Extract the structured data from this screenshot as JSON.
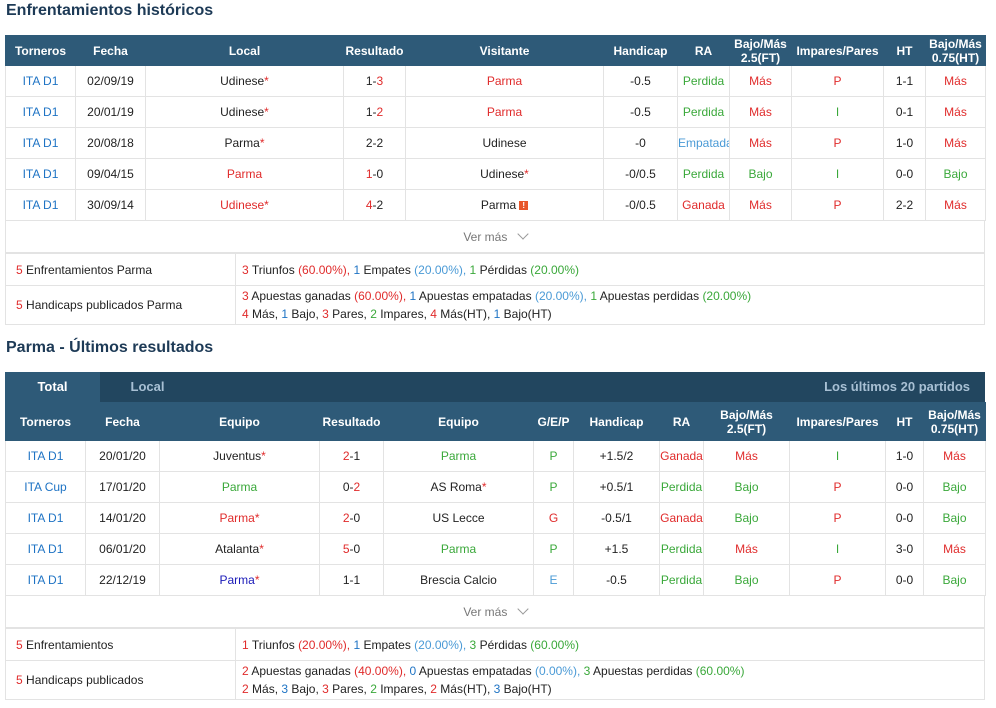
{
  "sections": {
    "h2h_title": "Enfrentamientos históricos",
    "recent_title": "Parma - Últimos resultados"
  },
  "h2h": {
    "headers": [
      "Torneros",
      "Fecha",
      "Local",
      "Resultado",
      "Visitante",
      "Handicap",
      "RA",
      "Bajo/Más 2.5(FT)",
      "Impares/Pares",
      "HT",
      "Bajo/Más 0.75(HT)"
    ],
    "rows": [
      {
        "league": "ITA D1",
        "date": "02/09/19",
        "home": "Udinese",
        "result_a": "1",
        "result_b": "3",
        "away": "Parma",
        "handicap": "-0.5",
        "ra": "Perdida",
        "ou": "Más",
        "oe": "P",
        "ht": "1-1",
        "ou_ht": "Más"
      },
      {
        "league": "ITA D1",
        "date": "20/01/19",
        "home": "Udinese",
        "result_a": "1",
        "result_b": "2",
        "away": "Parma",
        "handicap": "-0.5",
        "ra": "Perdida",
        "ou": "Más",
        "oe": "I",
        "ht": "0-1",
        "ou_ht": "Más"
      },
      {
        "league": "ITA D1",
        "date": "20/08/18",
        "home": "Parma",
        "result_a": "2",
        "result_b": "2",
        "away": "Udinese",
        "handicap": "-0",
        "ra": "Empatada",
        "ou": "Más",
        "oe": "P",
        "ht": "1-0",
        "ou_ht": "Más"
      },
      {
        "league": "ITA D1",
        "date": "09/04/15",
        "home": "Parma",
        "result_a": "1",
        "result_b": "0",
        "away": "Udinese",
        "handicap": "-0/0.5",
        "ra": "Perdida",
        "ou": "Bajo",
        "oe": "I",
        "ht": "0-0",
        "ou_ht": "Bajo"
      },
      {
        "league": "ITA D1",
        "date": "30/09/14",
        "home": "Udinese",
        "result_a": "4",
        "result_b": "2",
        "away": "Parma",
        "handicap": "-0/0.5",
        "ra": "Ganada",
        "ou": "Más",
        "oe": "P",
        "ht": "2-2",
        "ou_ht": "Más"
      }
    ],
    "ver_mas": "Ver más",
    "summary": {
      "row1_label_num": "5",
      "row1_label": "Enfrentamientos Parma",
      "row1": {
        "w": "3",
        "w_txt": "Triunfos",
        "w_pct": "(60.00%),",
        "d": "1",
        "d_txt": "Empates",
        "d_pct": "(20.00%),",
        "l": "1",
        "l_txt": "Pérdidas",
        "l_pct": "(20.00%)"
      },
      "row2_label_num": "5",
      "row2_label": "Handicaps publicados Parma",
      "row2_line1": {
        "w": "3",
        "w_txt": "Apuestas ganadas",
        "w_pct": "(60.00%),",
        "d": "1",
        "d_txt": "Apuestas empatadas",
        "d_pct": "(20.00%),",
        "l": "1",
        "l_txt": "Apuestas perdidas",
        "l_pct": "(20.00%)"
      },
      "row2_line2": {
        "a": "4",
        "a_txt": "Más,",
        "b": "1",
        "b_txt": "Bajo,",
        "c": "3",
        "c_txt": "Pares,",
        "d": "2",
        "d_txt": "Impares,",
        "e": "4",
        "e_txt": "Más(HT),",
        "f": "1",
        "f_txt": "Bajo(HT)"
      }
    }
  },
  "recent": {
    "tab_total": "Total",
    "tab_local": "Local",
    "last_n": "Los últimos 20 partidos",
    "headers": [
      "Torneros",
      "Fecha",
      "Equipo",
      "Resultado",
      "Equipo",
      "G/E/P",
      "Handicap",
      "RA",
      "Bajo/Más 2.5(FT)",
      "Impares/Pares",
      "HT",
      "Bajo/Más 0.75(HT)"
    ],
    "rows": [
      {
        "league": "ITA D1",
        "date": "20/01/20",
        "home": "Juventus",
        "result_a": "2",
        "result_b": "1",
        "away": "Parma",
        "gep": "P",
        "handicap": "+1.5/2",
        "ra": "Ganada",
        "ou": "Más",
        "oe": "I",
        "ht": "1-0",
        "ou_ht": "Más"
      },
      {
        "league": "ITA Cup",
        "date": "17/01/20",
        "home": "Parma",
        "result_a": "0",
        "result_b": "2",
        "away": "AS Roma",
        "gep": "P",
        "handicap": "+0.5/1",
        "ra": "Perdida",
        "ou": "Bajo",
        "oe": "P",
        "ht": "0-0",
        "ou_ht": "Bajo"
      },
      {
        "league": "ITA D1",
        "date": "14/01/20",
        "home": "Parma",
        "result_a": "2",
        "result_b": "0",
        "away": "US Lecce",
        "gep": "G",
        "handicap": "-0.5/1",
        "ra": "Ganada",
        "ou": "Bajo",
        "oe": "P",
        "ht": "0-0",
        "ou_ht": "Bajo"
      },
      {
        "league": "ITA D1",
        "date": "06/01/20",
        "home": "Atalanta",
        "result_a": "5",
        "result_b": "0",
        "away": "Parma",
        "gep": "P",
        "handicap": "+1.5",
        "ra": "Perdida",
        "ou": "Más",
        "oe": "I",
        "ht": "3-0",
        "ou_ht": "Más"
      },
      {
        "league": "ITA D1",
        "date": "22/12/19",
        "home": "Parma",
        "result_a": "1",
        "result_b": "1",
        "away": "Brescia Calcio",
        "gep": "E",
        "handicap": "-0.5",
        "ra": "Perdida",
        "ou": "Bajo",
        "oe": "P",
        "ht": "0-0",
        "ou_ht": "Bajo"
      }
    ],
    "ver_mas": "Ver más",
    "summary": {
      "row1_label_num": "5",
      "row1_label": "Enfrentamientos",
      "row1": {
        "w": "1",
        "w_txt": "Triunfos",
        "w_pct": "(20.00%),",
        "d": "1",
        "d_txt": "Empates",
        "d_pct": "(20.00%),",
        "l": "3",
        "l_txt": "Pérdidas",
        "l_pct": "(60.00%)"
      },
      "row2_label_num": "5",
      "row2_label": "Handicaps publicados",
      "row2_line1": {
        "w": "2",
        "w_txt": "Apuestas ganadas",
        "w_pct": "(40.00%),",
        "d": "0",
        "d_txt": "Apuestas empatadas",
        "d_pct": "(0.00%),",
        "l": "3",
        "l_txt": "Apuestas perdidas",
        "l_pct": "(60.00%)"
      },
      "row2_line2": {
        "a": "2",
        "a_txt": "Más,",
        "b": "3",
        "b_txt": "Bajo,",
        "c": "3",
        "c_txt": "Pares,",
        "d": "2",
        "d_txt": "Impares,",
        "e": "2",
        "e_txt": "Más(HT),",
        "f": "3",
        "f_txt": "Bajo(HT)"
      }
    }
  }
}
